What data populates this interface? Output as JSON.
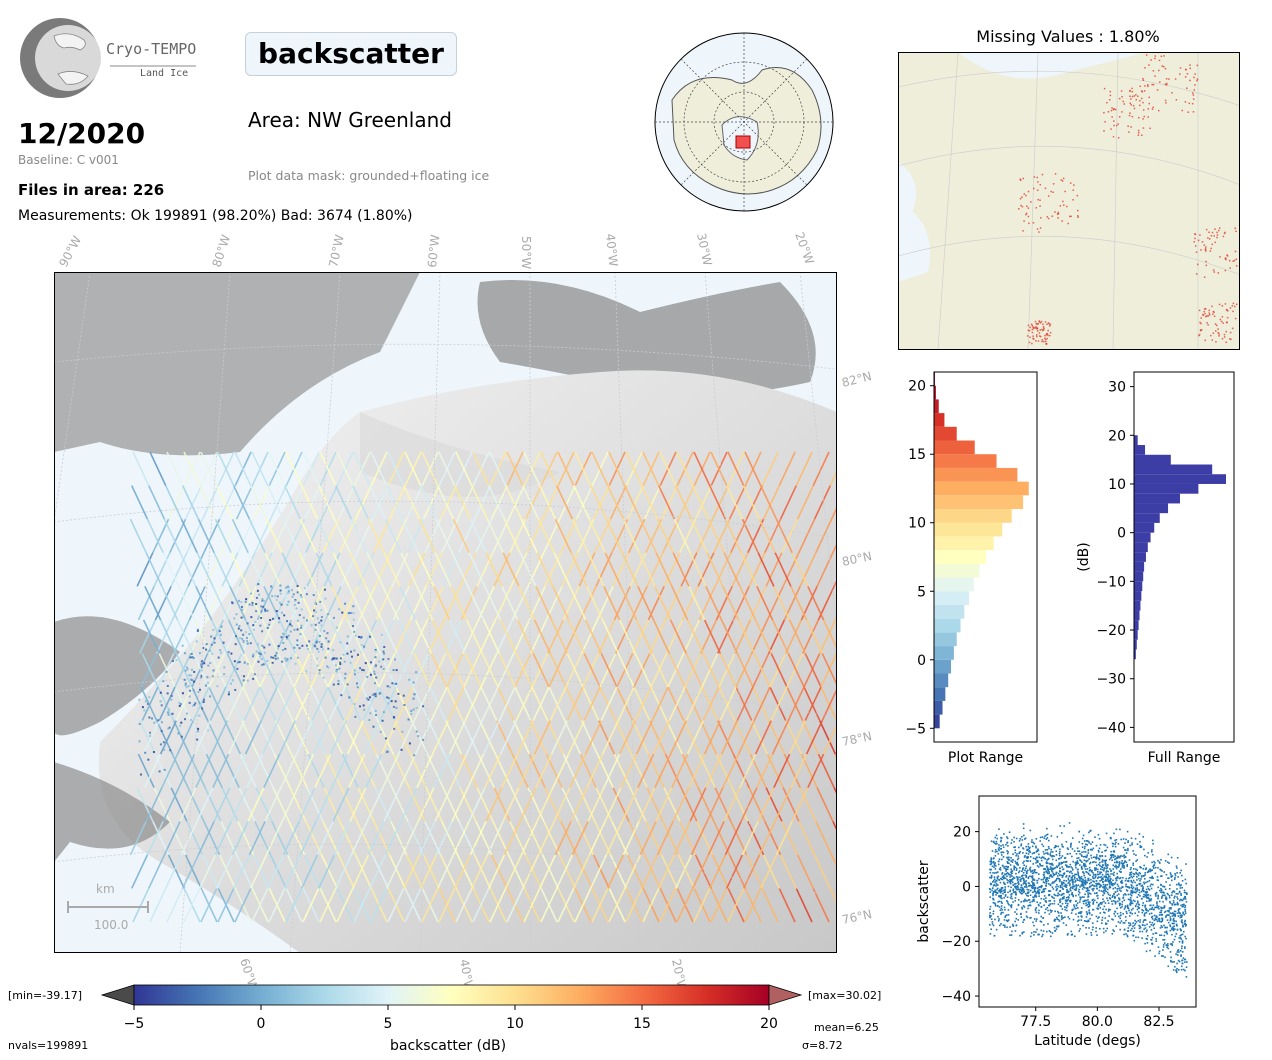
{
  "header": {
    "logo_title": "Cryo-TEMPO",
    "logo_subtitle": "Land Ice",
    "month": "12/2020",
    "baseline": "Baseline: C v001",
    "files_in_area": "Files in area: 226",
    "measurements": "Measurements: Ok 199891 (98.20%) Bad: 3674 (1.80%)",
    "variable": "backscatter",
    "area": "Area: NW Greenland",
    "mask": "Plot data mask: grounded+floating ice",
    "missing_values": "Missing Values : 1.80%"
  },
  "map": {
    "lon_labels": [
      "90°W",
      "80°W",
      "70°W",
      "60°W",
      "50°W",
      "40°W",
      "30°W",
      "20°W"
    ],
    "bottom_lon_labels": [
      "60°W",
      "40°W",
      "20°W"
    ],
    "lat_labels": [
      "82°N",
      "80°N",
      "78°N",
      "76°N"
    ],
    "scalebar_unit": "km",
    "scalebar_value": "100.0"
  },
  "colorbar": {
    "min_label": "[min=-39.17]",
    "max_label": "[max=30.02]",
    "ticks": [
      "−5",
      "0",
      "5",
      "10",
      "15",
      "20"
    ],
    "label": "backscatter (dB)",
    "nvals": "nvals=199891",
    "mean": "mean=6.25",
    "sigma": "σ=8.72"
  },
  "colors": {
    "map_bg": "#eef6fc",
    "land": "#efeedb",
    "hist_full": "#3d3da6",
    "scatter": "#1f77b4",
    "missing_points": "#e03020"
  },
  "chart_data": [
    {
      "type": "histogram",
      "name": "plot-range-histogram",
      "xlabel": "Plot Range",
      "ylim": [
        -6,
        21
      ],
      "yticks": [
        -5,
        0,
        5,
        10,
        15,
        20
      ],
      "bins": [
        -5,
        -4,
        -3,
        -2,
        -1,
        0,
        1,
        2,
        3,
        4,
        5,
        6,
        7,
        8,
        9,
        10,
        11,
        12,
        13,
        14,
        15,
        16,
        17,
        18,
        19,
        20
      ],
      "values": [
        0.06,
        0.09,
        0.12,
        0.15,
        0.18,
        0.21,
        0.24,
        0.28,
        0.32,
        0.37,
        0.42,
        0.48,
        0.55,
        0.63,
        0.72,
        0.82,
        0.94,
        1.0,
        0.88,
        0.66,
        0.43,
        0.24,
        0.11,
        0.05,
        0.02,
        0.01
      ]
    },
    {
      "type": "histogram",
      "name": "full-range-histogram",
      "xlabel": "Full Range",
      "ylabel": "(dB)",
      "ylim": [
        -43,
        33
      ],
      "yticks": [
        -40,
        -30,
        -20,
        -10,
        0,
        10,
        20,
        30
      ],
      "bins": [
        -26,
        -24,
        -22,
        -20,
        -18,
        -16,
        -14,
        -12,
        -10,
        -8,
        -6,
        -4,
        -2,
        0,
        2,
        4,
        6,
        8,
        10,
        12,
        14,
        16,
        18
      ],
      "values": [
        0.02,
        0.03,
        0.04,
        0.05,
        0.06,
        0.07,
        0.08,
        0.09,
        0.1,
        0.11,
        0.13,
        0.15,
        0.18,
        0.22,
        0.28,
        0.37,
        0.5,
        0.7,
        1.0,
        0.85,
        0.4,
        0.12,
        0.04
      ]
    },
    {
      "type": "scatter",
      "name": "backscatter-vs-latitude",
      "xlabel": "Latitude (degs)",
      "ylabel": "backscatter",
      "xlim": [
        75.2,
        84.0
      ],
      "ylim": [
        -44,
        33
      ],
      "xticks": [
        77.5,
        80.0,
        82.5
      ],
      "yticks": [
        -40,
        -20,
        0,
        20
      ],
      "x_range": [
        75.6,
        83.6
      ],
      "typical_band": [
        -30,
        25
      ]
    },
    {
      "type": "colorbar",
      "name": "backscatter-colorbar",
      "vmin": -5,
      "vmax": 20,
      "ticks": [
        -5,
        0,
        5,
        10,
        15,
        20
      ],
      "colors": [
        "#313695",
        "#4575b4",
        "#74add1",
        "#abd9e9",
        "#e0f3f8",
        "#ffffbf",
        "#fee090",
        "#fdae61",
        "#f46d43",
        "#d73027",
        "#a50026"
      ]
    }
  ]
}
